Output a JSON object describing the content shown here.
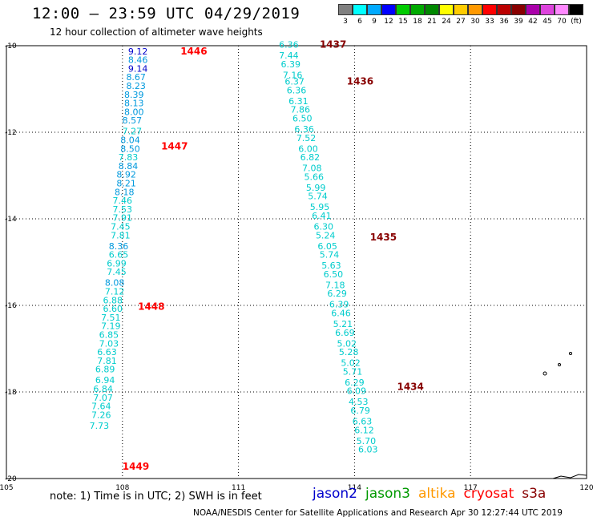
{
  "header": {
    "title": "12:00 – 23:59 UTC 04/29/2019",
    "subtitle": "12 hour collection of altimeter wave heights"
  },
  "color_legend": {
    "swatches": [
      "#808080",
      "#00ffff",
      "#00aaff",
      "#0000ff",
      "#00cc00",
      "#00aa00",
      "#008800",
      "#ffff00",
      "#ffcc00",
      "#ff9900",
      "#ff0000",
      "#bb0000",
      "#880000",
      "#aa00aa",
      "#dd44dd",
      "#ff88ff",
      "#000000"
    ],
    "labels": [
      "3",
      "6",
      "9",
      "12",
      "15",
      "18",
      "21",
      "24",
      "27",
      "30",
      "33",
      "36",
      "39",
      "42",
      "45",
      "70",
      "(ft)"
    ]
  },
  "axes": {
    "x_ticks": [
      "105",
      "108",
      "111",
      "114",
      "117",
      "120"
    ],
    "y_ticks": [
      "-10",
      "-12",
      "-14",
      "-16",
      "-18",
      "-20"
    ]
  },
  "track_colors": {
    "cyan": "#00cccc",
    "light_blue": "#0099dd",
    "blue": "#0000cc",
    "time_red": "#ff0000",
    "time_darkred": "#880000"
  },
  "chart_data": {
    "type": "scatter",
    "xlim": [
      105,
      120
    ],
    "ylim": [
      -20,
      -10
    ],
    "tracks": [
      {
        "label_color": "time_red",
        "time_labels": [
          {
            "text": "1446",
            "lon": 109.5,
            "lat": -10.2
          },
          {
            "text": "1447",
            "lon": 109.0,
            "lat": -12.4
          },
          {
            "text": "1448",
            "lon": 108.4,
            "lat": -16.1
          },
          {
            "text": "1449",
            "lon": 108.0,
            "lat": -19.8
          }
        ],
        "points": [
          {
            "v": "9.12",
            "lon": 108.4,
            "lat": -10.2,
            "c": "blue"
          },
          {
            "v": "8.46",
            "lon": 108.4,
            "lat": -10.4,
            "c": "light_blue"
          },
          {
            "v": "9.14",
            "lon": 108.4,
            "lat": -10.6,
            "c": "blue"
          },
          {
            "v": "8.67",
            "lon": 108.35,
            "lat": -10.8,
            "c": "light_blue"
          },
          {
            "v": "8.23",
            "lon": 108.35,
            "lat": -11.0,
            "c": "light_blue"
          },
          {
            "v": "8.39",
            "lon": 108.3,
            "lat": -11.2,
            "c": "light_blue"
          },
          {
            "v": "8.13",
            "lon": 108.3,
            "lat": -11.4,
            "c": "light_blue"
          },
          {
            "v": "8.00",
            "lon": 108.3,
            "lat": -11.6,
            "c": "light_blue"
          },
          {
            "v": "8.57",
            "lon": 108.25,
            "lat": -11.8,
            "c": "light_blue"
          },
          {
            "v": "7.27",
            "lon": 108.25,
            "lat": -12.05,
            "c": "cyan"
          },
          {
            "v": "8.04",
            "lon": 108.2,
            "lat": -12.25,
            "c": "light_blue"
          },
          {
            "v": "8.50",
            "lon": 108.2,
            "lat": -12.45,
            "c": "light_blue"
          },
          {
            "v": "7.83",
            "lon": 108.15,
            "lat": -12.65,
            "c": "cyan"
          },
          {
            "v": "8.84",
            "lon": 108.15,
            "lat": -12.85,
            "c": "light_blue"
          },
          {
            "v": "8.92",
            "lon": 108.1,
            "lat": -13.05,
            "c": "light_blue"
          },
          {
            "v": "8.21",
            "lon": 108.1,
            "lat": -13.25,
            "c": "light_blue"
          },
          {
            "v": "8.18",
            "lon": 108.05,
            "lat": -13.45,
            "c": "light_blue"
          },
          {
            "v": "7.46",
            "lon": 108.0,
            "lat": -13.65,
            "c": "cyan"
          },
          {
            "v": "7.53",
            "lon": 108.0,
            "lat": -13.85,
            "c": "cyan"
          },
          {
            "v": "7.91",
            "lon": 108.0,
            "lat": -14.05,
            "c": "cyan"
          },
          {
            "v": "7.45",
            "lon": 107.95,
            "lat": -14.25,
            "c": "cyan"
          },
          {
            "v": "7.81",
            "lon": 107.95,
            "lat": -14.45,
            "c": "cyan"
          },
          {
            "v": "8.36",
            "lon": 107.9,
            "lat": -14.7,
            "c": "light_blue"
          },
          {
            "v": "6.65",
            "lon": 107.9,
            "lat": -14.9,
            "c": "cyan"
          },
          {
            "v": "6.99",
            "lon": 107.85,
            "lat": -15.1,
            "c": "cyan"
          },
          {
            "v": "7.45",
            "lon": 107.85,
            "lat": -15.3,
            "c": "cyan"
          },
          {
            "v": "8.08",
            "lon": 107.8,
            "lat": -15.55,
            "c": "light_blue"
          },
          {
            "v": "7.12",
            "lon": 107.8,
            "lat": -15.75,
            "c": "cyan"
          },
          {
            "v": "6.88",
            "lon": 107.75,
            "lat": -15.95,
            "c": "cyan"
          },
          {
            "v": "6.60",
            "lon": 107.75,
            "lat": -16.15,
            "c": "cyan"
          },
          {
            "v": "7.51",
            "lon": 107.7,
            "lat": -16.35,
            "c": "cyan"
          },
          {
            "v": "7.19",
            "lon": 107.7,
            "lat": -16.55,
            "c": "cyan"
          },
          {
            "v": "6.85",
            "lon": 107.65,
            "lat": -16.75,
            "c": "cyan"
          },
          {
            "v": "7.03",
            "lon": 107.65,
            "lat": -16.95,
            "c": "cyan"
          },
          {
            "v": "6.63",
            "lon": 107.6,
            "lat": -17.15,
            "c": "cyan"
          },
          {
            "v": "7.81",
            "lon": 107.6,
            "lat": -17.35,
            "c": "cyan"
          },
          {
            "v": "6.89",
            "lon": 107.55,
            "lat": -17.55,
            "c": "cyan"
          },
          {
            "v": "6.94",
            "lon": 107.55,
            "lat": -17.8,
            "c": "cyan"
          },
          {
            "v": "6.84",
            "lon": 107.5,
            "lat": -18.0,
            "c": "cyan"
          },
          {
            "v": "7.07",
            "lon": 107.5,
            "lat": -18.2,
            "c": "cyan"
          },
          {
            "v": "7.64",
            "lon": 107.45,
            "lat": -18.4,
            "c": "cyan"
          },
          {
            "v": "7.26",
            "lon": 107.45,
            "lat": -18.6,
            "c": "cyan"
          },
          {
            "v": "7.73",
            "lon": 107.4,
            "lat": -18.85,
            "c": "cyan"
          }
        ]
      },
      {
        "label_color": "time_darkred",
        "time_labels": [
          {
            "text": "1437",
            "lon": 113.1,
            "lat": -10.05
          },
          {
            "text": "1436",
            "lon": 113.8,
            "lat": -10.9
          },
          {
            "text": "1435",
            "lon": 114.4,
            "lat": -14.5
          },
          {
            "text": "1434",
            "lon": 115.1,
            "lat": -17.95
          }
        ],
        "points": [
          {
            "v": "6.36",
            "lon": 112.3,
            "lat": -10.05,
            "c": "cyan"
          },
          {
            "v": "7.44",
            "lon": 112.3,
            "lat": -10.3,
            "c": "cyan"
          },
          {
            "v": "6.39",
            "lon": 112.35,
            "lat": -10.5,
            "c": "cyan"
          },
          {
            "v": "7.16",
            "lon": 112.4,
            "lat": -10.75,
            "c": "cyan"
          },
          {
            "v": "6.37",
            "lon": 112.45,
            "lat": -10.9,
            "c": "cyan"
          },
          {
            "v": "6.36",
            "lon": 112.5,
            "lat": -11.1,
            "c": "cyan"
          },
          {
            "v": "6.31",
            "lon": 112.55,
            "lat": -11.35,
            "c": "cyan"
          },
          {
            "v": "7.86",
            "lon": 112.6,
            "lat": -11.55,
            "c": "cyan"
          },
          {
            "v": "6.50",
            "lon": 112.65,
            "lat": -11.75,
            "c": "cyan"
          },
          {
            "v": "6.36",
            "lon": 112.7,
            "lat": -12.0,
            "c": "cyan"
          },
          {
            "v": "7.52",
            "lon": 112.75,
            "lat": -12.2,
            "c": "cyan"
          },
          {
            "v": "6.00",
            "lon": 112.8,
            "lat": -12.45,
            "c": "cyan"
          },
          {
            "v": "6.82",
            "lon": 112.85,
            "lat": -12.65,
            "c": "cyan"
          },
          {
            "v": "7.08",
            "lon": 112.9,
            "lat": -12.9,
            "c": "cyan"
          },
          {
            "v": "5.66",
            "lon": 112.95,
            "lat": -13.1,
            "c": "cyan"
          },
          {
            "v": "5.99",
            "lon": 113.0,
            "lat": -13.35,
            "c": "cyan"
          },
          {
            "v": "5.74",
            "lon": 113.05,
            "lat": -13.55,
            "c": "cyan"
          },
          {
            "v": "5.95",
            "lon": 113.1,
            "lat": -13.8,
            "c": "cyan"
          },
          {
            "v": "6.41",
            "lon": 113.15,
            "lat": -14.0,
            "c": "cyan"
          },
          {
            "v": "6.30",
            "lon": 113.2,
            "lat": -14.25,
            "c": "cyan"
          },
          {
            "v": "5.24",
            "lon": 113.25,
            "lat": -14.45,
            "c": "cyan"
          },
          {
            "v": "6.05",
            "lon": 113.3,
            "lat": -14.7,
            "c": "cyan"
          },
          {
            "v": "5.74",
            "lon": 113.35,
            "lat": -14.9,
            "c": "cyan"
          },
          {
            "v": "5.63",
            "lon": 113.4,
            "lat": -15.15,
            "c": "cyan"
          },
          {
            "v": "6.50",
            "lon": 113.45,
            "lat": -15.35,
            "c": "cyan"
          },
          {
            "v": "7.18",
            "lon": 113.5,
            "lat": -15.6,
            "c": "cyan"
          },
          {
            "v": "6.29",
            "lon": 113.55,
            "lat": -15.8,
            "c": "cyan"
          },
          {
            "v": "6.39",
            "lon": 113.6,
            "lat": -16.05,
            "c": "cyan"
          },
          {
            "v": "6.46",
            "lon": 113.65,
            "lat": -16.25,
            "c": "cyan"
          },
          {
            "v": "5.21",
            "lon": 113.7,
            "lat": -16.5,
            "c": "cyan"
          },
          {
            "v": "6.69",
            "lon": 113.75,
            "lat": -16.7,
            "c": "cyan"
          },
          {
            "v": "5.02",
            "lon": 113.8,
            "lat": -16.95,
            "c": "cyan"
          },
          {
            "v": "5.28",
            "lon": 113.85,
            "lat": -17.15,
            "c": "cyan"
          },
          {
            "v": "5.02",
            "lon": 113.9,
            "lat": -17.4,
            "c": "cyan"
          },
          {
            "v": "5.71",
            "lon": 113.95,
            "lat": -17.6,
            "c": "cyan"
          },
          {
            "v": "6.29",
            "lon": 114.0,
            "lat": -17.85,
            "c": "cyan"
          },
          {
            "v": "6.09",
            "lon": 114.05,
            "lat": -18.05,
            "c": "cyan"
          },
          {
            "v": "4.53",
            "lon": 114.1,
            "lat": -18.3,
            "c": "cyan"
          },
          {
            "v": "6.79",
            "lon": 114.15,
            "lat": -18.5,
            "c": "cyan"
          },
          {
            "v": "6.63",
            "lon": 114.2,
            "lat": -18.75,
            "c": "cyan"
          },
          {
            "v": "6.12",
            "lon": 114.25,
            "lat": -18.95,
            "c": "cyan"
          },
          {
            "v": "5.70",
            "lon": 114.3,
            "lat": -19.2,
            "c": "cyan"
          },
          {
            "v": "6.03",
            "lon": 114.35,
            "lat": -19.4,
            "c": "cyan"
          }
        ]
      }
    ]
  },
  "footer": {
    "note": "note:  1) Time is in UTC;  2) SWH is in feet",
    "satellites": [
      {
        "name": "jason2",
        "color": "#0000cc"
      },
      {
        "name": "jason3",
        "color": "#009900"
      },
      {
        "name": "altika",
        "color": "#ff9900"
      },
      {
        "name": "cryosat",
        "color": "#ff0000"
      },
      {
        "name": "s3a",
        "color": "#880000"
      }
    ],
    "credit": "NOAA/NESDIS Center for Satellite Applications and Research    Apr 30 12:27:44 UTC 2019"
  }
}
